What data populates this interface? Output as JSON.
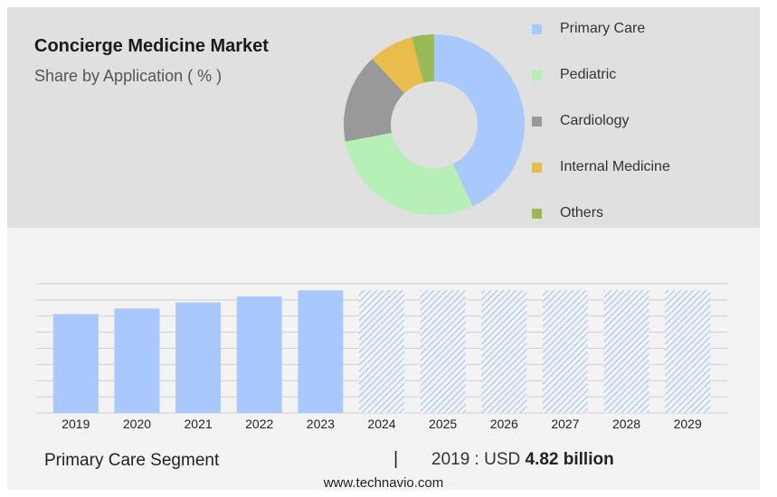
{
  "chart_data": [
    {
      "type": "pie",
      "title": "Concierge Medicine Market",
      "subtitle": "Share by Application ( % )",
      "hole": true,
      "segments": [
        {
          "label": "Primary Care",
          "value": 43,
          "color": "#a9c8fb"
        },
        {
          "label": "Pediatric",
          "value": 29,
          "color": "#b6f0b6"
        },
        {
          "label": "Cardiology",
          "value": 16,
          "color": "#999999"
        },
        {
          "label": "Internal Medicine",
          "value": 8,
          "color": "#e8bd4b"
        },
        {
          "label": "Others",
          "value": 4,
          "color": "#9aba58"
        }
      ],
      "legend_position": "right"
    },
    {
      "type": "bar",
      "categories": [
        "2019",
        "2020",
        "2021",
        "2022",
        "2023",
        "2024",
        "2025",
        "2026",
        "2027",
        "2028",
        "2029"
      ],
      "values": [
        4.82,
        5.09,
        5.39,
        5.68,
        5.98,
        5.98,
        5.98,
        5.98,
        5.98,
        5.98,
        5.98
      ],
      "forecast_from": "2024",
      "ylim": [
        0,
        6.3
      ],
      "bar_color": "#a9c8fb",
      "grid": true,
      "xlabel": "",
      "ylabel": ""
    }
  ],
  "footer": {
    "segment_label": "Primary Care Segment",
    "separator": "|",
    "stat_prefix": "2019 : USD ",
    "stat_value": "4.82 billion"
  },
  "source": "www.technavio.com"
}
